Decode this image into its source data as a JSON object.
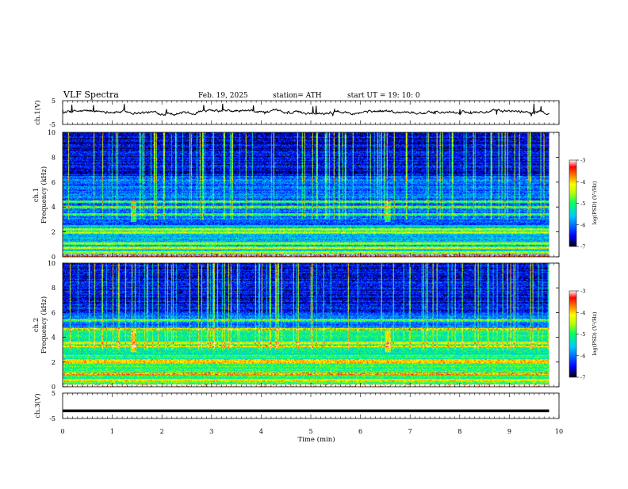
{
  "header": {
    "title": "VLF  Spectra",
    "date": "Feb. 19, 2025",
    "station": "station= ATH",
    "start_ut": "start  UT  =    19: 10: 0"
  },
  "chart_data": [
    {
      "type": "line",
      "name": "ch1",
      "ylabel": "ch.1(V)",
      "ylim": [
        -5,
        5
      ],
      "yticks": [
        "5",
        "-5"
      ],
      "x_range_min": [
        0,
        9.8
      ],
      "mean": 0.2
    },
    {
      "type": "heatmap",
      "name": "ch1-spectrogram",
      "ylabel": "ch.1",
      "ylabel2": "Frequency  (kHz)",
      "ylim": [
        0,
        10
      ],
      "yticks": [
        "0",
        "2",
        "4",
        "6",
        "8",
        "10"
      ],
      "xlim": [
        0,
        10
      ],
      "data_extent_min": 9.8,
      "colorbar": {
        "label": "log(PSD) (V²/Hz)",
        "range": [
          -7,
          -3
        ],
        "ticks": [
          "-3",
          "-4",
          "-5",
          "-6",
          "-7"
        ]
      },
      "bands_khz": [
        0.3,
        0.7,
        1.0,
        1.9,
        2.2,
        3.4,
        4.0,
        4.4
      ]
    },
    {
      "type": "heatmap",
      "name": "ch2-spectrogram",
      "ylabel": "ch.2",
      "ylabel2": "Frequency  (kHz)",
      "ylim": [
        0,
        10
      ],
      "yticks": [
        "0",
        "2",
        "4",
        "6",
        "8",
        "10"
      ],
      "xlim": [
        0,
        10
      ],
      "data_extent_min": 9.8,
      "colorbar": {
        "label": "log(PSD) (V²/Hz)",
        "range": [
          -7,
          -3
        ],
        "ticks": [
          "-3",
          "-4",
          "-5",
          "-6",
          "-7"
        ]
      },
      "bands_khz": [
        0.5,
        1.0,
        2.0,
        2.1,
        3.3,
        3.5,
        4.7,
        5.4
      ]
    },
    {
      "type": "line",
      "name": "ch3",
      "ylabel": "ch.3(V)",
      "ylim": [
        -5,
        5
      ],
      "yticks": [
        "5",
        "-5"
      ],
      "xlabel": "Time  (min)",
      "xticks": [
        "0",
        "1",
        "2",
        "3",
        "4",
        "5",
        "6",
        "7",
        "8",
        "9",
        "10"
      ],
      "x_range_min": [
        0,
        9.8
      ],
      "value": -2
    }
  ],
  "colors": {
    "scale": [
      "#000000",
      "#0000ff",
      "#00c8ff",
      "#00ff64",
      "#b4ff00",
      "#ffff00",
      "#ff8000",
      "#ff0000",
      "#ffffff"
    ]
  }
}
